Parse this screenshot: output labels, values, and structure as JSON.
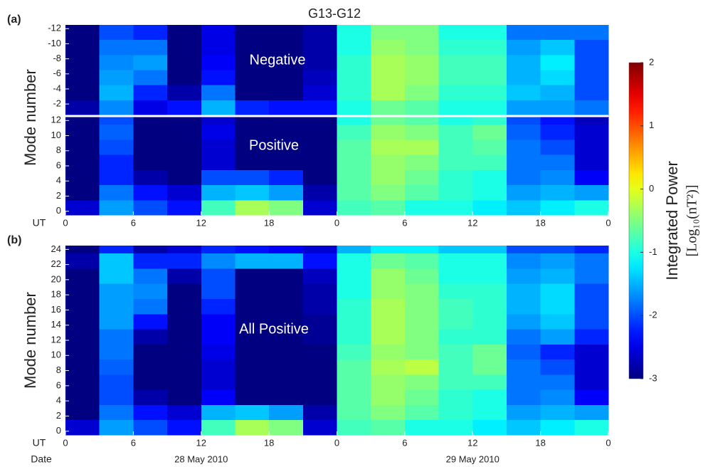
{
  "title": "G13-G12",
  "colorbar": {
    "zlim": [
      -3,
      2
    ],
    "zticks": [
      -3,
      -2,
      -1,
      0,
      1,
      2
    ],
    "label": "Integrated Power",
    "unit_label": "[Log₁₀(nT²)]"
  },
  "chart_data": [
    {
      "type": "heatmap",
      "panel_label": "(a)",
      "annotation": "Negative",
      "ylabel": "Mode number",
      "y_reversed": true,
      "xlim": [
        0,
        48
      ],
      "ylim": [
        -12.5,
        -0.5
      ],
      "yticks": [
        -12,
        -10,
        -8,
        -6,
        -4,
        -2
      ],
      "x_bins": [
        0,
        3,
        6,
        9,
        12,
        15,
        18,
        21,
        24,
        27,
        30,
        33,
        36,
        39,
        42,
        45,
        48
      ],
      "y_bins": [
        -12.5,
        -10.5,
        -8.5,
        -6.5,
        -4.5,
        -2.5,
        -0.5
      ],
      "values": [
        [
          -3,
          -2,
          -2.2,
          -3,
          -2.5,
          -3,
          -3,
          -2.8,
          -1,
          -0.5,
          -0.5,
          -1,
          -1,
          -1.8,
          -1.8,
          -1.8
        ],
        [
          -3,
          -1.8,
          -1.8,
          -3,
          -2.5,
          -3,
          -3,
          -2.8,
          -1,
          -0.4,
          -0.5,
          -0.9,
          -0.9,
          -1.6,
          -1.4,
          -2
        ],
        [
          -3,
          -1.7,
          -1.6,
          -3,
          -2.4,
          -3,
          -3,
          -2.8,
          -0.9,
          -0.3,
          -0.4,
          -0.8,
          -0.8,
          -1.5,
          -1.2,
          -2
        ],
        [
          -3,
          -1.6,
          -1.8,
          -3,
          -2.3,
          -3,
          -3,
          -2.7,
          -0.9,
          -0.3,
          -0.4,
          -0.8,
          -0.8,
          -1.5,
          -1.3,
          -2
        ],
        [
          -3,
          -1.5,
          -2.2,
          -2.8,
          -1.8,
          -3,
          -3,
          -2.6,
          -0.9,
          -0.3,
          -0.5,
          -0.9,
          -0.9,
          -1.4,
          -1.5,
          -2
        ],
        [
          -2.8,
          -1.7,
          -2.5,
          -2.3,
          -1.5,
          -2.2,
          -2.3,
          -2.3,
          -1,
          -0.6,
          -0.7,
          -1,
          -1,
          -1.6,
          -1.6,
          -1.8
        ]
      ]
    },
    {
      "type": "heatmap",
      "annotation": "Positive",
      "xlabel": "UT",
      "xlim": [
        0,
        48
      ],
      "ylim": [
        -0.5,
        12.5
      ],
      "yticks": [
        0,
        2,
        4,
        6,
        8,
        10,
        12
      ],
      "xticks": [
        0,
        6,
        12,
        18,
        {
          "value": 24,
          "label": "0"
        },
        {
          "value": 30,
          "label": "6"
        },
        {
          "value": 36,
          "label": "12"
        },
        {
          "value": 42,
          "label": "18"
        },
        {
          "value": 48,
          "label": "0"
        }
      ],
      "x_bins": [
        0,
        3,
        6,
        9,
        12,
        15,
        18,
        21,
        24,
        27,
        30,
        33,
        36,
        39,
        42,
        45,
        48
      ],
      "y_bins": [
        -0.5,
        1.5,
        3.5,
        5.5,
        7.5,
        9.5,
        11.5,
        12.5
      ],
      "values": [
        [
          -2.6,
          -1.6,
          -2,
          -2.3,
          -0.8,
          -0.3,
          -0.5,
          -2.6,
          -0.8,
          -0.7,
          -1,
          -1,
          -1.2,
          -1.4,
          -1.2,
          -1
        ],
        [
          -3,
          -1.8,
          -2.3,
          -2.6,
          -1.5,
          -1.4,
          -1.6,
          -2.8,
          -0.7,
          -0.5,
          -0.7,
          -0.9,
          -1,
          -1.6,
          -1.5,
          -1.6
        ],
        [
          -3,
          -2.2,
          -2.8,
          -3,
          -2,
          -2,
          -2.2,
          -3,
          -0.7,
          -0.4,
          -0.6,
          -0.9,
          -1,
          -1.8,
          -1.7,
          -2.4
        ],
        [
          -3,
          -2.2,
          -3,
          -3,
          -2.6,
          -3,
          -3,
          -3,
          -0.7,
          -0.4,
          -0.5,
          -0.8,
          -0.8,
          -1.8,
          -1.8,
          -2.6
        ],
        [
          -3,
          -2,
          -3,
          -3,
          -2.6,
          -3,
          -3,
          -3,
          -0.7,
          -0.3,
          -0.3,
          -0.8,
          -0.7,
          -1.8,
          -2,
          -2.6
        ],
        [
          -3,
          -1.9,
          -3,
          -3,
          -2.5,
          -3,
          -3,
          -3,
          -0.8,
          -0.4,
          -0.5,
          -0.8,
          -0.6,
          -1.9,
          -2.2,
          -2.6
        ],
        [
          -3,
          -2,
          -3,
          -3,
          -2.6,
          -3,
          -3,
          -3,
          -1,
          -0.6,
          -0.7,
          -1,
          -0.9,
          -2,
          -2.3,
          -2.7
        ]
      ]
    },
    {
      "type": "heatmap",
      "panel_label": "(b)",
      "annotation": "All Positive",
      "ylabel": "Mode number",
      "xlabel": "UT",
      "date_title": "Date",
      "date_labels": [
        {
          "value": 12,
          "label": "28 May 2010"
        },
        {
          "value": 36,
          "label": "29 May 2010"
        }
      ],
      "xlim": [
        0,
        48
      ],
      "ylim": [
        -0.5,
        24.5
      ],
      "yticks": [
        0,
        2,
        4,
        6,
        8,
        10,
        12,
        14,
        16,
        18,
        20,
        22,
        24
      ],
      "xticks": [
        0,
        6,
        12,
        18,
        {
          "value": 24,
          "label": "0"
        },
        {
          "value": 30,
          "label": "6"
        },
        {
          "value": 36,
          "label": "12"
        },
        {
          "value": 42,
          "label": "18"
        },
        {
          "value": 48,
          "label": "0"
        }
      ],
      "x_bins": [
        0,
        3,
        6,
        9,
        12,
        15,
        18,
        21,
        24,
        27,
        30,
        33,
        36,
        39,
        42,
        45,
        48
      ],
      "y_bins": [
        -0.5,
        1.5,
        3.5,
        5.5,
        7.5,
        9.5,
        11.5,
        13.5,
        15.5,
        17.5,
        19.5,
        21.5,
        23.5,
        24.5
      ],
      "values": [
        [
          -2.6,
          -1.6,
          -2,
          -2.3,
          -0.8,
          -0.3,
          -0.5,
          -2.6,
          -0.8,
          -0.7,
          -1,
          -1,
          -1.2,
          -1.4,
          -1.2,
          -1
        ],
        [
          -3,
          -1.8,
          -2.3,
          -2.6,
          -1.5,
          -1.4,
          -1.6,
          -2.8,
          -0.7,
          -0.5,
          -0.7,
          -0.9,
          -1,
          -1.6,
          -1.5,
          -1.6
        ],
        [
          -3,
          -2,
          -2.8,
          -3,
          -2.4,
          -3,
          -3,
          -3,
          -0.7,
          -0.4,
          -0.6,
          -0.9,
          -1,
          -1.8,
          -1.7,
          -2.4
        ],
        [
          -3,
          -2,
          -3,
          -3,
          -2.6,
          -3,
          -3,
          -3,
          -0.7,
          -0.4,
          -0.5,
          -0.8,
          -0.8,
          -1.8,
          -1.8,
          -2.6
        ],
        [
          -3,
          -1.9,
          -3,
          -3,
          -2.6,
          -3,
          -3,
          -3,
          -0.7,
          -0.3,
          -0.2,
          -0.8,
          -0.6,
          -1.8,
          -2,
          -2.6
        ],
        [
          -3,
          -1.8,
          -3,
          -3,
          -2.5,
          -3,
          -3,
          -3,
          -0.8,
          -0.4,
          -0.5,
          -0.8,
          -0.6,
          -1.9,
          -2.2,
          -2.6
        ],
        [
          -3,
          -1.8,
          -2.8,
          -3,
          -2.4,
          -3,
          -3,
          -2.9,
          -0.9,
          -0.3,
          -0.5,
          -0.9,
          -0.9,
          -1.8,
          -1.6,
          -2.2
        ],
        [
          -3,
          -1.6,
          -2.3,
          -3,
          -2.4,
          -3,
          -3,
          -2.9,
          -0.9,
          -0.3,
          -0.5,
          -0.8,
          -0.9,
          -1.6,
          -1.4,
          -2
        ],
        [
          -3,
          -1.6,
          -1.8,
          -3,
          -2.2,
          -3,
          -3,
          -2.8,
          -0.9,
          -0.3,
          -0.5,
          -0.8,
          -0.9,
          -1.5,
          -1.3,
          -2
        ],
        [
          -3,
          -1.6,
          -1.7,
          -3,
          -2,
          -3,
          -3,
          -2.8,
          -1,
          -0.4,
          -0.5,
          -0.9,
          -0.9,
          -1.5,
          -1.3,
          -2
        ],
        [
          -3,
          -1.4,
          -1.8,
          -2.8,
          -2,
          -3,
          -3,
          -2.7,
          -1,
          -0.4,
          -0.6,
          -1,
          -1,
          -1.6,
          -1.5,
          -1.8
        ],
        [
          -2.8,
          -1.4,
          -2.2,
          -2.2,
          -1.7,
          -1.5,
          -1.5,
          -2.3,
          -1,
          -0.6,
          -0.7,
          -1,
          -1,
          -1.7,
          -1.6,
          -1.8
        ],
        [
          -3,
          -2.2,
          -2.8,
          -2.6,
          -2.2,
          -2.3,
          -2.4,
          -2.6,
          -1.5,
          -1.2,
          -1.2,
          -1.4,
          -1.4,
          -2,
          -2,
          -2.2
        ]
      ]
    }
  ]
}
